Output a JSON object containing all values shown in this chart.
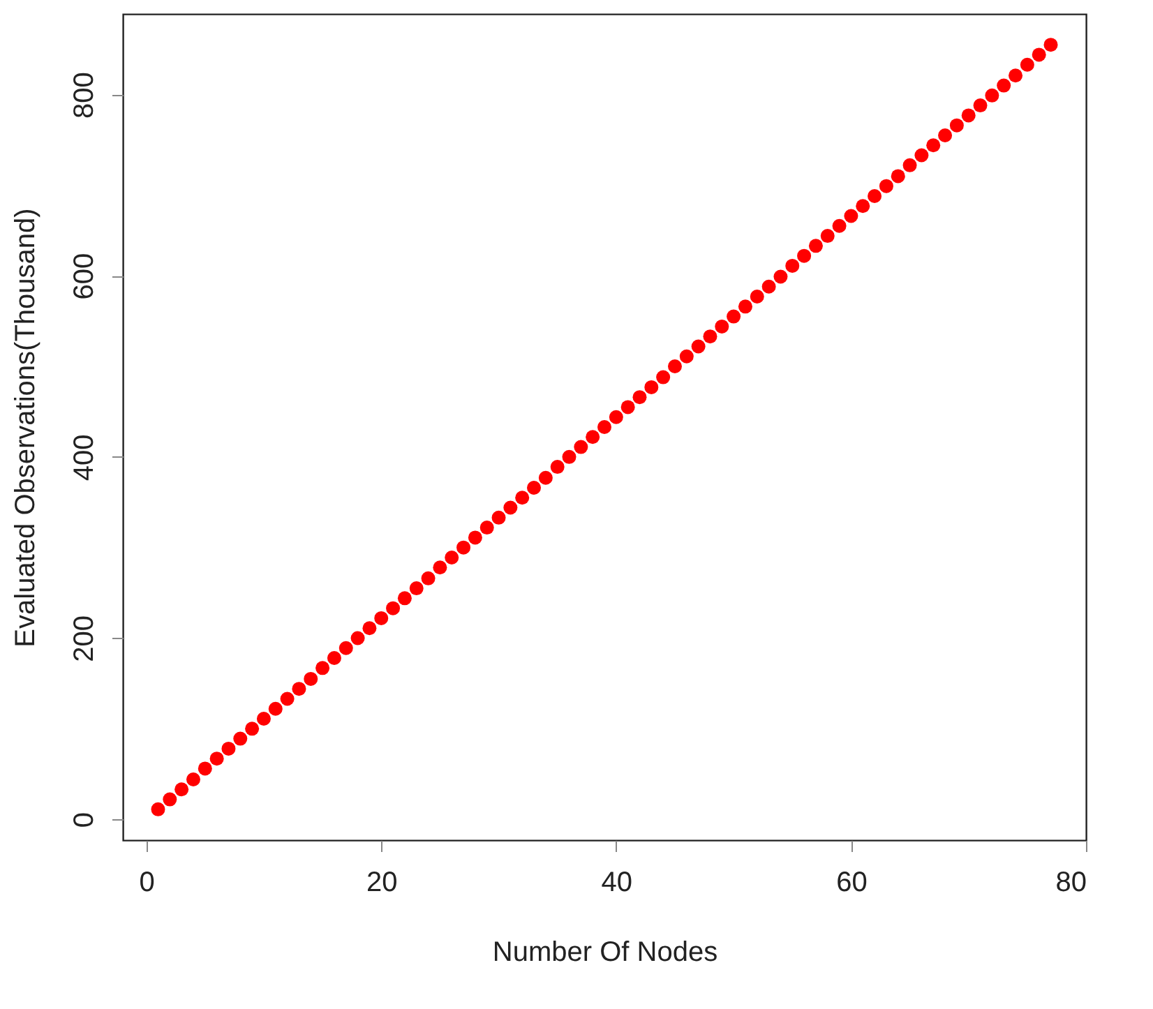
{
  "chart_data": {
    "type": "scatter",
    "xlabel": "Number Of Nodes",
    "ylabel": "Evaluated Observations(Thousand)",
    "x": [
      1,
      2,
      3,
      4,
      5,
      6,
      7,
      8,
      9,
      10,
      11,
      12,
      13,
      14,
      15,
      16,
      17,
      18,
      19,
      20,
      21,
      22,
      23,
      24,
      25,
      26,
      27,
      28,
      29,
      30,
      31,
      32,
      33,
      34,
      35,
      36,
      37,
      38,
      39,
      40,
      41,
      42,
      43,
      44,
      45,
      46,
      47,
      48,
      49,
      50,
      51,
      52,
      53,
      54,
      55,
      56,
      57,
      58,
      59,
      60,
      61,
      62,
      63,
      64,
      65,
      66,
      67,
      68,
      69,
      70,
      71,
      72,
      73,
      74,
      75,
      76,
      77
    ],
    "series": [
      {
        "color": "#ff0000",
        "values": [
          11,
          22,
          33,
          44,
          56,
          67,
          78,
          89,
          100,
          111,
          122,
          133,
          144,
          155,
          167,
          178,
          189,
          200,
          211,
          222,
          233,
          244,
          255,
          266,
          278,
          289,
          300,
          311,
          322,
          333,
          344,
          355,
          366,
          377,
          389,
          400,
          411,
          422,
          433,
          444,
          455,
          466,
          477,
          488,
          500,
          511,
          522,
          533,
          544,
          555,
          566,
          577,
          588,
          599,
          611,
          622,
          633,
          644,
          655,
          666,
          677,
          688,
          699,
          710,
          722,
          733,
          744,
          755,
          766,
          777,
          788,
          799,
          810,
          821,
          833,
          844,
          855
        ]
      }
    ],
    "xlim": [
      -2,
      80
    ],
    "ylim": [
      -23,
      889
    ],
    "xticks": [
      0,
      20,
      40,
      60,
      80
    ],
    "yticks": [
      0,
      200,
      400,
      600,
      800
    ],
    "marker": "circle",
    "grid": false
  }
}
